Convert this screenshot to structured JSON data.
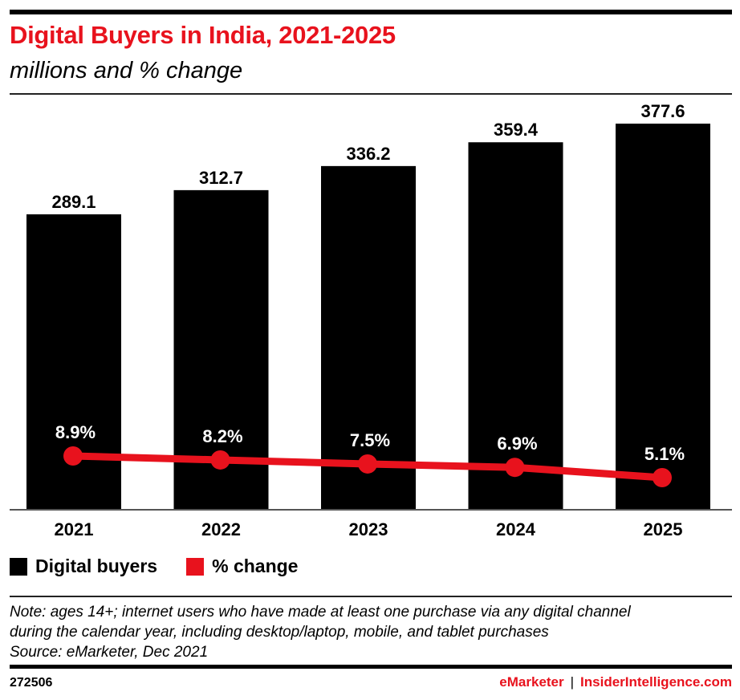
{
  "header": {
    "title": "Digital Buyers in India, 2021-2025",
    "subtitle": "millions and % change"
  },
  "legend": [
    {
      "label": "Digital buyers",
      "color": "#000000"
    },
    {
      "label": "% change",
      "color": "#e8121d"
    }
  ],
  "footer": {
    "note_lines": [
      "Note: ages 14+; internet users who have made at least one purchase via any digital channel",
      "during the calendar year, including desktop/laptop, mobile, and tablet purchases",
      "Source: eMarketer, Dec 2021"
    ],
    "chart_id": "272506",
    "brand_left": "eMarketer",
    "brand_sep": "|",
    "brand_right": "InsiderIntelligence.com"
  },
  "colors": {
    "bar": "#000000",
    "line": "#e8121d",
    "title": "#e8121d"
  },
  "chart_data": {
    "type": "bar",
    "title": "Digital Buyers in India, 2021-2025",
    "subtitle": "millions and % change",
    "categories": [
      "2021",
      "2022",
      "2023",
      "2024",
      "2025"
    ],
    "series": [
      {
        "name": "Digital buyers",
        "type": "bar",
        "values": [
          289.1,
          312.7,
          336.2,
          359.4,
          377.6
        ],
        "labels": [
          "289.1",
          "312.7",
          "336.2",
          "359.4",
          "377.6"
        ]
      },
      {
        "name": "% change",
        "type": "line",
        "values": [
          8.9,
          8.2,
          7.5,
          6.9,
          5.1
        ],
        "labels": [
          "8.9%",
          "8.2%",
          "7.5%",
          "6.9%",
          "5.1%"
        ]
      }
    ],
    "xlabel": "",
    "ylabel": "",
    "grid": false,
    "legend_position": "bottom-left"
  }
}
